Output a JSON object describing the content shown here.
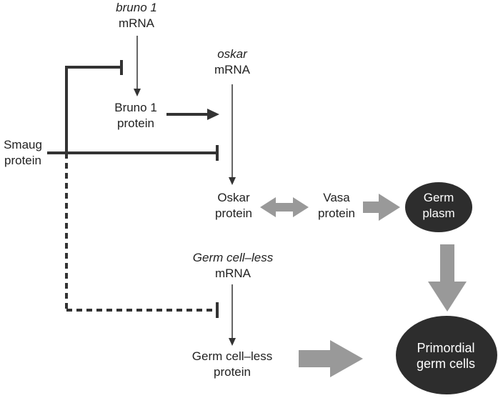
{
  "nodes": {
    "bruno1_mrna": {
      "line1": "bruno 1",
      "line2": "mRNA"
    },
    "oskar_mrna": {
      "line1": "oskar",
      "line2": "mRNA"
    },
    "bruno1_protein": {
      "line1": "Bruno 1",
      "line2": "protein"
    },
    "smaug_protein": {
      "line1": "Smaug",
      "line2": "protein"
    },
    "oskar_protein": {
      "line1": "Oskar",
      "line2": "protein"
    },
    "vasa_protein": {
      "line1": "Vasa",
      "line2": "protein"
    },
    "germ_plasm": {
      "line1": "Germ",
      "line2": "plasm"
    },
    "gcl_mrna": {
      "line1": "Germ cell–less",
      "line2": "mRNA"
    },
    "gcl_protein": {
      "line1": "Germ cell–less",
      "line2": "protein"
    },
    "primordial_germ_cells": {
      "line1": "Primordial",
      "line2": "germ cells"
    }
  },
  "colors": {
    "text": "#222222",
    "dark_line": "#333333",
    "gray_arrow": "#999999",
    "node_fill": "#2d2d2d",
    "node_text": "#ffffff"
  }
}
